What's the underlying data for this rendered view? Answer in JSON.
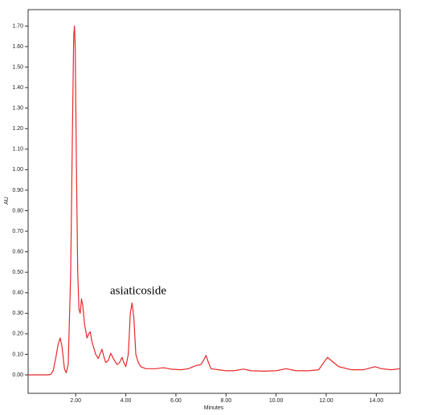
{
  "chart_data": {
    "type": "line",
    "x_label": "Minutes",
    "y_label": "AU",
    "annotation": "asiaticoside",
    "series": [
      {
        "color": "#e8282b",
        "x": [
          0.1,
          0.9,
          1.0,
          1.1,
          1.2,
          1.3,
          1.38,
          1.45,
          1.55,
          1.62,
          1.7,
          1.8,
          1.87,
          1.92,
          1.95,
          1.98,
          2.03,
          2.08,
          2.13,
          2.18,
          2.23,
          2.28,
          2.35,
          2.45,
          2.52,
          2.58,
          2.65,
          2.8,
          2.9,
          3.0,
          3.05,
          3.12,
          3.2,
          3.3,
          3.4,
          3.5,
          3.65,
          3.75,
          3.85,
          3.92,
          4.0,
          4.1,
          4.18,
          4.25,
          4.32,
          4.4,
          4.5,
          4.6,
          4.8,
          5.2,
          5.5,
          5.8,
          6.2,
          6.5,
          6.8,
          7.0,
          7.1,
          7.2,
          7.3,
          7.4,
          7.7,
          8.0,
          8.3,
          8.7,
          9.0,
          9.5,
          10.0,
          10.4,
          10.8,
          11.3,
          11.7,
          11.9,
          12.05,
          12.2,
          12.5,
          13.0,
          13.5,
          13.8,
          13.95,
          14.2,
          14.6,
          14.95
        ],
        "values": [
          0.0,
          0.0,
          0.002,
          0.02,
          0.08,
          0.15,
          0.18,
          0.14,
          0.03,
          0.01,
          0.05,
          0.5,
          1.2,
          1.65,
          1.7,
          1.6,
          1.0,
          0.5,
          0.32,
          0.3,
          0.37,
          0.34,
          0.25,
          0.18,
          0.2,
          0.21,
          0.16,
          0.1,
          0.08,
          0.11,
          0.125,
          0.09,
          0.06,
          0.07,
          0.105,
          0.08,
          0.05,
          0.06,
          0.085,
          0.06,
          0.04,
          0.1,
          0.3,
          0.35,
          0.28,
          0.1,
          0.06,
          0.04,
          0.03,
          0.03,
          0.035,
          0.028,
          0.025,
          0.03,
          0.045,
          0.05,
          0.07,
          0.095,
          0.06,
          0.03,
          0.025,
          0.02,
          0.02,
          0.028,
          0.02,
          0.018,
          0.02,
          0.03,
          0.02,
          0.02,
          0.025,
          0.06,
          0.085,
          0.07,
          0.04,
          0.025,
          0.025,
          0.035,
          0.04,
          0.03,
          0.025,
          0.03
        ]
      }
    ],
    "xlim": [
      0.1,
      14.95
    ],
    "ylim": [
      -0.09,
      1.78
    ],
    "xticks": [
      {
        "value": 2,
        "label": "2.00"
      },
      {
        "value": 4,
        "label": "4.00"
      },
      {
        "value": 6,
        "label": "6.00"
      },
      {
        "value": 8,
        "label": "8.00"
      },
      {
        "value": 10,
        "label": "10.00"
      },
      {
        "value": 12,
        "label": "12.00"
      },
      {
        "value": 14,
        "label": "14.00"
      }
    ],
    "yticks": [
      {
        "value": 0,
        "label": "0.00"
      },
      {
        "value": 0.1,
        "label": "0.10"
      },
      {
        "value": 0.2,
        "label": "0.20"
      },
      {
        "value": 0.3,
        "label": "0.30"
      },
      {
        "value": 0.4,
        "label": "0.40"
      },
      {
        "value": 0.5,
        "label": "0.50"
      },
      {
        "value": 0.6,
        "label": "0.60"
      },
      {
        "value": 0.7,
        "label": "0.70"
      },
      {
        "value": 0.8,
        "label": "0.80"
      },
      {
        "value": 0.9,
        "label": "0.90"
      },
      {
        "value": 1.0,
        "label": "1.00"
      },
      {
        "value": 1.1,
        "label": "1.10"
      },
      {
        "value": 1.2,
        "label": "1.20"
      },
      {
        "value": 1.3,
        "label": "1.30"
      },
      {
        "value": 1.4,
        "label": "1.40"
      },
      {
        "value": 1.5,
        "label": "1.50"
      },
      {
        "value": 1.6,
        "label": "1.60"
      },
      {
        "value": 1.7,
        "label": "1.70"
      }
    ]
  }
}
